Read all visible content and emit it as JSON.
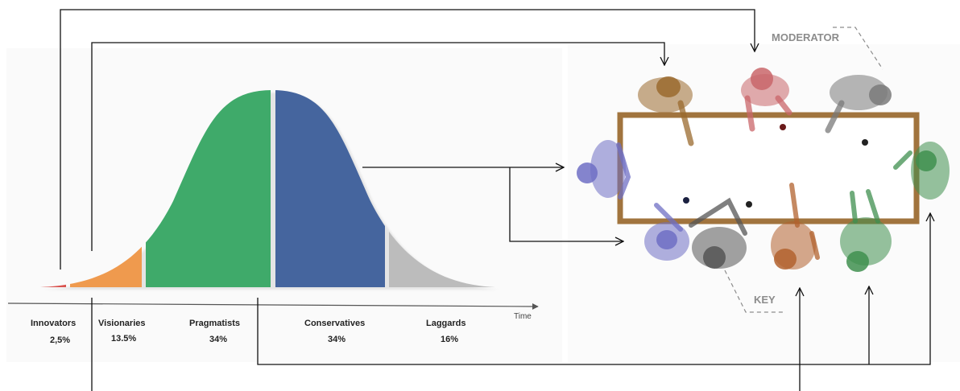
{
  "adoption_curve": {
    "axis_label": "Time",
    "segments": [
      {
        "name": "Innovators",
        "percent": "2,5%",
        "color": "#d9534f"
      },
      {
        "name": "Visionaries",
        "percent": "13.5%",
        "color": "#ef9a4e"
      },
      {
        "name": "Pragmatists",
        "percent": "34%",
        "color": "#3faa6a"
      },
      {
        "name": "Conservatives",
        "percent": "34%",
        "color": "#45659e"
      },
      {
        "name": "Laggards",
        "percent": "16%",
        "color": "#bcbcbc"
      }
    ]
  },
  "meeting_table": {
    "moderator_label": "MODERATOR",
    "key_label": "KEY",
    "table_color": "#a1743e",
    "participants": [
      {
        "id": "p-top-left",
        "tint": "#9a6a2e"
      },
      {
        "id": "p-top-center",
        "tint": "#c9666a"
      },
      {
        "id": "p-top-right",
        "tint": "#7a7a7a"
      },
      {
        "id": "p-left",
        "tint": "#6f6fc4"
      },
      {
        "id": "p-right",
        "tint": "#3f8f4f"
      },
      {
        "id": "p-bottom-1",
        "tint": "#6f6fc4"
      },
      {
        "id": "p-bottom-2",
        "tint": "#555555"
      },
      {
        "id": "p-bottom-3",
        "tint": "#b2612e"
      },
      {
        "id": "p-bottom-4",
        "tint": "#3f8f4f"
      }
    ]
  }
}
